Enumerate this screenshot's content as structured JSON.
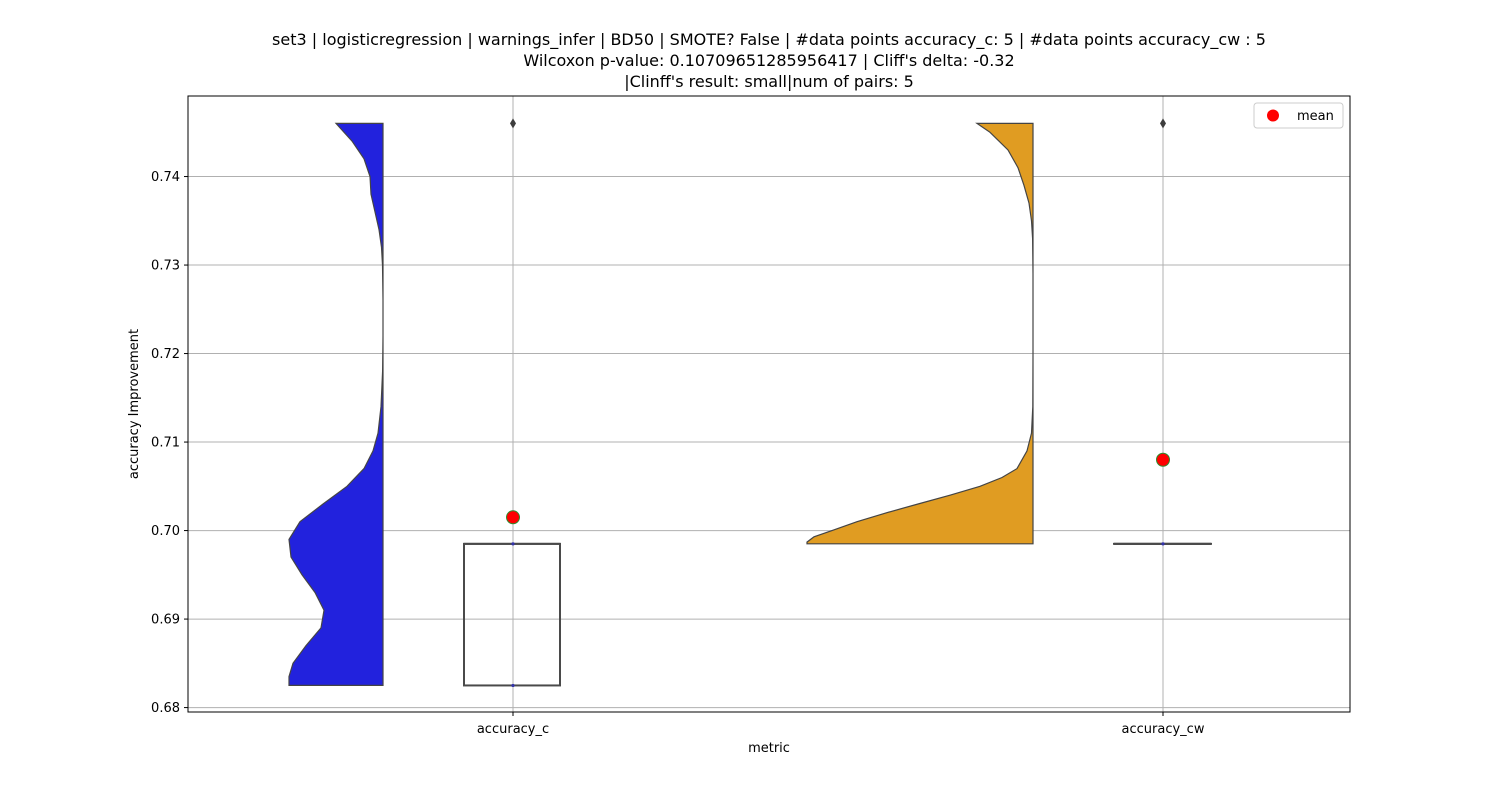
{
  "chart_data": {
    "type": "violin",
    "title_lines": [
      "set3 | logisticregression | warnings_infer | BD50 | SMOTE? False | #data points accuracy_c: 5 | #data points accuracy_cw : 5",
      "Wilcoxon p-value: 0.10709651285956417 | Cliff's delta: -0.32",
      "|Clinff's result: small|num of pairs: 5"
    ],
    "xlabel": "metric",
    "ylabel": "accuracy Improvement",
    "categories": [
      "accuracy_c",
      "accuracy_cw"
    ],
    "ylim": [
      0.6795,
      0.7491
    ],
    "yticks": [
      "0.68",
      "0.69",
      "0.70",
      "0.71",
      "0.72",
      "0.73",
      "0.74"
    ],
    "grid": true,
    "legend": {
      "label": "mean",
      "color": "#ff0000",
      "placement": "top-right"
    },
    "series": [
      {
        "category": "accuracy_c",
        "violin_color": "#2222dd",
        "violin_range": [
          0.6825,
          0.746
        ],
        "box": {
          "q1": 0.6825,
          "median": 0.6985,
          "q3": 0.6985,
          "whisker_low": 0.6825,
          "whisker_high": 0.6985
        },
        "outliers": [
          0.746
        ],
        "mean": 0.7015
      },
      {
        "category": "accuracy_cw",
        "violin_color": "#e09c22",
        "violin_range": [
          0.6985,
          0.746
        ],
        "box": {
          "q1": 0.6985,
          "median": 0.6985,
          "q3": 0.6985,
          "whisker_low": 0.6985,
          "whisker_high": 0.6985
        },
        "outliers": [
          0.746
        ],
        "mean": 0.708
      }
    ]
  }
}
